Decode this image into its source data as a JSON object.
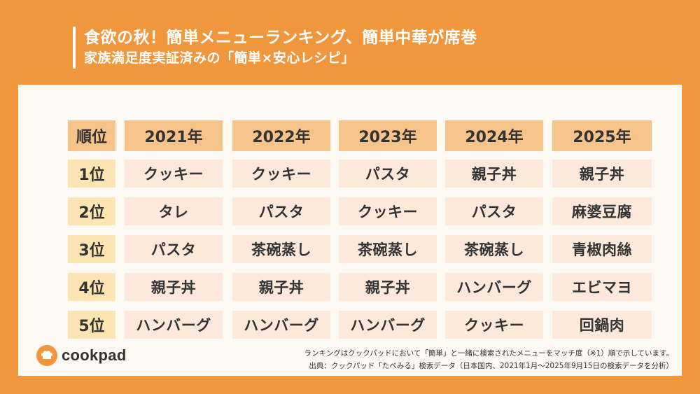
{
  "title": {
    "line1": "食欲の秋！簡単メニューランキング、簡単中華が席巻",
    "line2": "家族満足度実証済みの「簡単×安心レシピ」"
  },
  "table": {
    "corner": "順位",
    "years": [
      "2021年",
      "2022年",
      "2023年",
      "2024年",
      "2025年"
    ],
    "ranks": [
      "1位",
      "2位",
      "3位",
      "4位",
      "5位"
    ],
    "rows": [
      [
        "クッキー",
        "クッキー",
        "パスタ",
        "親子丼",
        "親子丼"
      ],
      [
        "タレ",
        "パスタ",
        "クッキー",
        "パスタ",
        "麻婆豆腐"
      ],
      [
        "パスタ",
        "茶碗蒸し",
        "茶碗蒸し",
        "茶碗蒸し",
        "青椒肉絲"
      ],
      [
        "親子丼",
        "親子丼",
        "親子丼",
        "ハンバーグ",
        "エビマヨ"
      ],
      [
        "ハンバーグ",
        "ハンバーグ",
        "ハンバーグ",
        "クッキー",
        "回鍋肉"
      ]
    ]
  },
  "logo": {
    "text": "cookpad",
    "icon": "chef-hat-icon"
  },
  "notes": {
    "line1": "ランキングはクックパッドにおいて「簡単」と一緒に検索されたメニューをマッチ度（※1）順で示しています。",
    "line2": "出典：クックパッド「たべみる」検索データ（日本国内、2021年1月〜2025年9月15日の検索データを分析）"
  },
  "colors": {
    "background": "#F0963C",
    "panel": "#FCF8F2",
    "header_cell": "#F6C38A",
    "rank_cell": "#FDE5B2",
    "data_cell": "#FDE8DA"
  }
}
